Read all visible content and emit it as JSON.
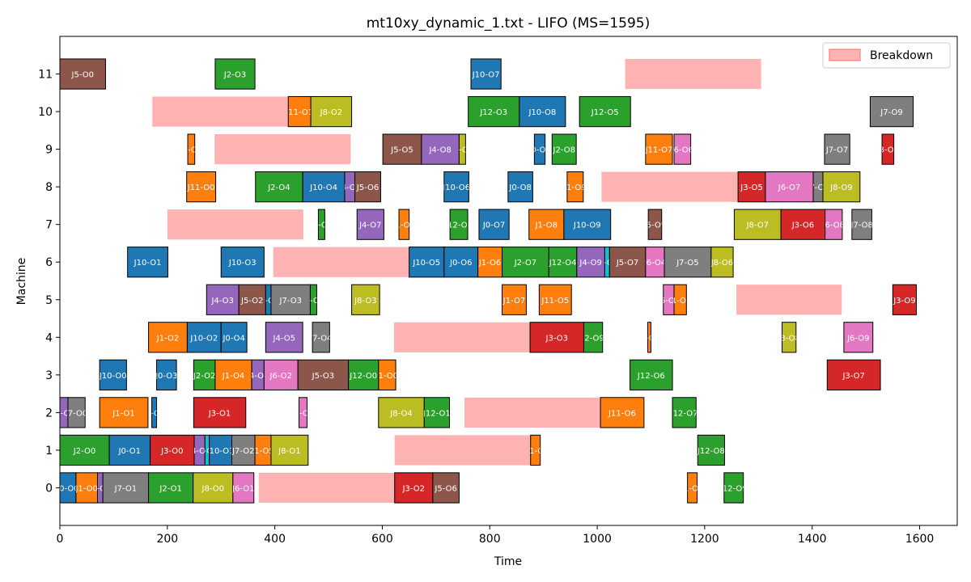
{
  "chart_data": {
    "type": "gantt",
    "title": "mt10xy_dynamic_1.txt - LIFO (MS=1595)",
    "xlabel": "Time",
    "ylabel": "Machine",
    "xlim": [
      0,
      1670
    ],
    "ylim": [
      -1,
      12
    ],
    "xticks": [
      0,
      200,
      400,
      600,
      800,
      1000,
      1200,
      1400,
      1600
    ],
    "yticks": [
      0,
      1,
      2,
      3,
      4,
      5,
      6,
      7,
      8,
      9,
      10,
      11
    ],
    "legend": {
      "position": "top-right",
      "entries": [
        {
          "label": "Breakdown",
          "color": "#ffb3b3"
        }
      ]
    },
    "job_colors": {
      "J0": "#1f77b4",
      "J1": "#ff7f0e",
      "J2": "#2ca02c",
      "J3": "#d62728",
      "J4": "#9467bd",
      "J5": "#8c564b",
      "J6": "#e377c2",
      "J7": "#7f7f7f",
      "J8": "#bcbd22",
      "J9": "#17becf",
      "J10": "#1f77b4",
      "J11": "#ff7f0e",
      "J12": "#2ca02c"
    },
    "breakdown_color": "#ffb3b3",
    "breakdowns": [
      {
        "machine": 11,
        "start": 1052,
        "end": 1305
      },
      {
        "machine": 10,
        "start": 172,
        "end": 425
      },
      {
        "machine": 9,
        "start": 288,
        "end": 541
      },
      {
        "machine": 8,
        "start": 1008,
        "end": 1261
      },
      {
        "machine": 7,
        "start": 200,
        "end": 453
      },
      {
        "machine": 6,
        "start": 397,
        "end": 650
      },
      {
        "machine": 5,
        "start": 1259,
        "end": 1455
      },
      {
        "machine": 4,
        "start": 622,
        "end": 875
      },
      {
        "machine": 2,
        "start": 753,
        "end": 1006
      },
      {
        "machine": 1,
        "start": 623,
        "end": 876
      },
      {
        "machine": 0,
        "start": 370,
        "end": 623
      }
    ],
    "operations": [
      {
        "machine": 11,
        "job": "J5",
        "label": "J5-O0",
        "start": 0,
        "end": 85
      },
      {
        "machine": 11,
        "job": "J2",
        "label": "J2-O3",
        "start": 289,
        "end": 363
      },
      {
        "machine": 11,
        "job": "J10",
        "label": "J10-O7",
        "start": 765,
        "end": 821
      },
      {
        "machine": 10,
        "job": "J11",
        "label": "J11-O1",
        "start": 425,
        "end": 467
      },
      {
        "machine": 10,
        "job": "J8",
        "label": "J8-O2",
        "start": 467,
        "end": 543
      },
      {
        "machine": 10,
        "job": "J12",
        "label": "J12-O3",
        "start": 760,
        "end": 855
      },
      {
        "machine": 10,
        "job": "J10",
        "label": "J10-O8",
        "start": 855,
        "end": 941
      },
      {
        "machine": 10,
        "job": "J12",
        "label": "J12-O5",
        "start": 967,
        "end": 1062
      },
      {
        "machine": 10,
        "job": "J7",
        "label": "J7-O9",
        "start": 1508,
        "end": 1588
      },
      {
        "machine": 9,
        "job": "J1",
        "label": "J1-O2",
        "start": 238,
        "end": 251
      },
      {
        "machine": 9,
        "job": "J5",
        "label": "J5-O5",
        "start": 601,
        "end": 673
      },
      {
        "machine": 9,
        "job": "J4",
        "label": "J4-O8",
        "start": 673,
        "end": 743
      },
      {
        "machine": 9,
        "job": "J8",
        "label": "J8-O3",
        "start": 743,
        "end": 755
      },
      {
        "machine": 9,
        "job": "J0",
        "label": "J0-O9",
        "start": 883,
        "end": 903
      },
      {
        "machine": 9,
        "job": "J2",
        "label": "J2-O8",
        "start": 916,
        "end": 961
      },
      {
        "machine": 9,
        "job": "J11",
        "label": "J11-O7",
        "start": 1090,
        "end": 1140
      },
      {
        "machine": 9,
        "job": "J6",
        "label": "J6-O6",
        "start": 1143,
        "end": 1174
      },
      {
        "machine": 9,
        "job": "J7",
        "label": "J7-O7",
        "start": 1423,
        "end": 1470
      },
      {
        "machine": 9,
        "job": "J3",
        "label": "J3-O8",
        "start": 1530,
        "end": 1552
      },
      {
        "machine": 8,
        "job": "J11",
        "label": "J11-O0",
        "start": 236,
        "end": 290
      },
      {
        "machine": 8,
        "job": "J2",
        "label": "J2-O4",
        "start": 364,
        "end": 452
      },
      {
        "machine": 8,
        "job": "J10",
        "label": "J10-O4",
        "start": 452,
        "end": 530
      },
      {
        "machine": 8,
        "job": "J4",
        "label": "J4-O6",
        "start": 530,
        "end": 549
      },
      {
        "machine": 8,
        "job": "J5",
        "label": "J5-O6",
        "start": 549,
        "end": 597
      },
      {
        "machine": 8,
        "job": "J10",
        "label": "J10-O6",
        "start": 715,
        "end": 761
      },
      {
        "machine": 8,
        "job": "J0",
        "label": "J0-O8",
        "start": 834,
        "end": 880
      },
      {
        "machine": 8,
        "job": "J1",
        "label": "J1-O9",
        "start": 944,
        "end": 974
      },
      {
        "machine": 8,
        "job": "J3",
        "label": "J3-O5",
        "start": 1262,
        "end": 1313
      },
      {
        "machine": 8,
        "job": "J6",
        "label": "J6-O7",
        "start": 1313,
        "end": 1402
      },
      {
        "machine": 8,
        "job": "J7",
        "label": "J7-O6",
        "start": 1402,
        "end": 1420
      },
      {
        "machine": 8,
        "job": "J8",
        "label": "J8-O9",
        "start": 1420,
        "end": 1489
      },
      {
        "machine": 7,
        "job": "J2",
        "label": "J2-O6",
        "start": 481,
        "end": 493
      },
      {
        "machine": 7,
        "job": "J4",
        "label": "J4-O7",
        "start": 553,
        "end": 603
      },
      {
        "machine": 7,
        "job": "J1",
        "label": "J1-O6",
        "start": 631,
        "end": 650
      },
      {
        "machine": 7,
        "job": "J12",
        "label": "J12-O4",
        "start": 726,
        "end": 759
      },
      {
        "machine": 7,
        "job": "J0",
        "label": "J0-O7",
        "start": 780,
        "end": 836
      },
      {
        "machine": 7,
        "job": "J1",
        "label": "J1-O8",
        "start": 873,
        "end": 938
      },
      {
        "machine": 7,
        "job": "J10",
        "label": "J10-O9",
        "start": 938,
        "end": 1025
      },
      {
        "machine": 7,
        "job": "J5",
        "label": "J5-O9",
        "start": 1095,
        "end": 1120
      },
      {
        "machine": 7,
        "job": "J8",
        "label": "J8-O7",
        "start": 1255,
        "end": 1342
      },
      {
        "machine": 7,
        "job": "J3",
        "label": "J3-O6",
        "start": 1342,
        "end": 1424
      },
      {
        "machine": 7,
        "job": "J6",
        "label": "J6-O8",
        "start": 1424,
        "end": 1456
      },
      {
        "machine": 7,
        "job": "J7",
        "label": "J7-O8",
        "start": 1474,
        "end": 1511
      },
      {
        "machine": 6,
        "job": "J10",
        "label": "J10-O1",
        "start": 126,
        "end": 201
      },
      {
        "machine": 6,
        "job": "J10",
        "label": "J10-O3",
        "start": 300,
        "end": 380
      },
      {
        "machine": 6,
        "job": "J10",
        "label": "J10-O5",
        "start": 650,
        "end": 715
      },
      {
        "machine": 6,
        "job": "J0",
        "label": "J0-O6",
        "start": 715,
        "end": 778
      },
      {
        "machine": 6,
        "job": "J1",
        "label": "J1-O6",
        "start": 778,
        "end": 823
      },
      {
        "machine": 6,
        "job": "J2",
        "label": "J2-O7",
        "start": 823,
        "end": 910
      },
      {
        "machine": 6,
        "job": "J12",
        "label": "J12-O4",
        "start": 910,
        "end": 962
      },
      {
        "machine": 6,
        "job": "J4",
        "label": "J4-O9",
        "start": 962,
        "end": 1014
      },
      {
        "machine": 6,
        "job": "J9",
        "label": "J9-O4",
        "start": 1014,
        "end": 1023
      },
      {
        "machine": 6,
        "job": "J5",
        "label": "J5-O7",
        "start": 1023,
        "end": 1090
      },
      {
        "machine": 6,
        "job": "J6",
        "label": "J6-O4",
        "start": 1090,
        "end": 1125
      },
      {
        "machine": 6,
        "job": "J7",
        "label": "J7-O5",
        "start": 1125,
        "end": 1212
      },
      {
        "machine": 6,
        "job": "J8",
        "label": "J8-O6",
        "start": 1212,
        "end": 1253
      },
      {
        "machine": 5,
        "job": "J4",
        "label": "J4-O3",
        "start": 273,
        "end": 333
      },
      {
        "machine": 5,
        "job": "J5",
        "label": "J5-O2",
        "start": 333,
        "end": 383
      },
      {
        "machine": 5,
        "job": "J0",
        "label": "J0-O5",
        "start": 383,
        "end": 393
      },
      {
        "machine": 5,
        "job": "J7",
        "label": "J7-O3",
        "start": 393,
        "end": 466
      },
      {
        "machine": 5,
        "job": "J2",
        "label": "J2-O5",
        "start": 466,
        "end": 478
      },
      {
        "machine": 5,
        "job": "J8",
        "label": "J8-O3",
        "start": 543,
        "end": 595
      },
      {
        "machine": 5,
        "job": "J1",
        "label": "J1-O7",
        "start": 823,
        "end": 868
      },
      {
        "machine": 5,
        "job": "J11",
        "label": "J11-O5",
        "start": 892,
        "end": 952
      },
      {
        "machine": 5,
        "job": "J6",
        "label": "J6-O5",
        "start": 1123,
        "end": 1143
      },
      {
        "machine": 5,
        "job": "J1",
        "label": "J1-O5",
        "start": 1143,
        "end": 1166
      },
      {
        "machine": 5,
        "job": "J3",
        "label": "J3-O9",
        "start": 1550,
        "end": 1594
      },
      {
        "machine": 4,
        "job": "J1",
        "label": "J1-O2",
        "start": 165,
        "end": 237
      },
      {
        "machine": 4,
        "job": "J10",
        "label": "J10-O2",
        "start": 237,
        "end": 300
      },
      {
        "machine": 4,
        "job": "J0",
        "label": "J0-O4",
        "start": 300,
        "end": 348
      },
      {
        "machine": 4,
        "job": "J4",
        "label": "J4-O5",
        "start": 383,
        "end": 452
      },
      {
        "machine": 4,
        "job": "J7",
        "label": "J7-O4",
        "start": 470,
        "end": 502
      },
      {
        "machine": 4,
        "job": "J3",
        "label": "J3-O3",
        "start": 875,
        "end": 975
      },
      {
        "machine": 4,
        "job": "J2",
        "label": "J2-O9",
        "start": 975,
        "end": 1010
      },
      {
        "machine": 4,
        "job": "J1",
        "label": "J1-O3",
        "start": 1094,
        "end": 1100
      },
      {
        "machine": 4,
        "job": "J8",
        "label": "J8-O8",
        "start": 1344,
        "end": 1370
      },
      {
        "machine": 4,
        "job": "J6",
        "label": "J6-O9",
        "start": 1459,
        "end": 1513
      },
      {
        "machine": 3,
        "job": "J10",
        "label": "J10-O0",
        "start": 74,
        "end": 124
      },
      {
        "machine": 3,
        "job": "J0",
        "label": "J0-O3",
        "start": 180,
        "end": 217
      },
      {
        "machine": 3,
        "job": "J2",
        "label": "J2-O2",
        "start": 249,
        "end": 289
      },
      {
        "machine": 3,
        "job": "J1",
        "label": "J1-O4",
        "start": 289,
        "end": 357
      },
      {
        "machine": 3,
        "job": "J4",
        "label": "J4-O4",
        "start": 357,
        "end": 380
      },
      {
        "machine": 3,
        "job": "J6",
        "label": "J6-O2",
        "start": 380,
        "end": 443
      },
      {
        "machine": 3,
        "job": "J5",
        "label": "J5-O3",
        "start": 443,
        "end": 537
      },
      {
        "machine": 3,
        "job": "J12",
        "label": "J12-O0",
        "start": 537,
        "end": 593
      },
      {
        "machine": 3,
        "job": "J1",
        "label": "J1-O0",
        "start": 593,
        "end": 625
      },
      {
        "machine": 3,
        "job": "J12",
        "label": "J12-O6",
        "start": 1061,
        "end": 1140
      },
      {
        "machine": 3,
        "job": "J3",
        "label": "J3-O7",
        "start": 1428,
        "end": 1527
      },
      {
        "machine": 2,
        "job": "J4",
        "label": "J4-O0",
        "start": 0,
        "end": 15
      },
      {
        "machine": 2,
        "job": "J7",
        "label": "J7-O0",
        "start": 15,
        "end": 47
      },
      {
        "machine": 2,
        "job": "J1",
        "label": "J1-O1",
        "start": 74,
        "end": 164
      },
      {
        "machine": 2,
        "job": "J0",
        "label": "J0-O2",
        "start": 171,
        "end": 180
      },
      {
        "machine": 2,
        "job": "J3",
        "label": "J3-O1",
        "start": 249,
        "end": 346
      },
      {
        "machine": 2,
        "job": "J6",
        "label": "J6-O1",
        "start": 445,
        "end": 460
      },
      {
        "machine": 2,
        "job": "J8",
        "label": "J8-O4",
        "start": 593,
        "end": 678
      },
      {
        "machine": 2,
        "job": "J12",
        "label": "J12-O1",
        "start": 678,
        "end": 725
      },
      {
        "machine": 2,
        "job": "J11",
        "label": "J11-O6",
        "start": 1006,
        "end": 1087
      },
      {
        "machine": 2,
        "job": "J12",
        "label": "J12-O7",
        "start": 1140,
        "end": 1184
      },
      {
        "machine": 1,
        "job": "J2",
        "label": "J2-O0",
        "start": 0,
        "end": 92
      },
      {
        "machine": 1,
        "job": "J0",
        "label": "J0-O1",
        "start": 92,
        "end": 168
      },
      {
        "machine": 1,
        "job": "J3",
        "label": "J3-O0",
        "start": 168,
        "end": 250
      },
      {
        "machine": 1,
        "job": "J4",
        "label": "J4-O1",
        "start": 250,
        "end": 270
      },
      {
        "machine": 1,
        "job": "J9",
        "label": "J9-O1",
        "start": 270,
        "end": 278
      },
      {
        "machine": 1,
        "job": "J10",
        "label": "J10-O1",
        "start": 278,
        "end": 320
      },
      {
        "machine": 1,
        "job": "J7",
        "label": "J7-O2",
        "start": 320,
        "end": 363
      },
      {
        "machine": 1,
        "job": "J1",
        "label": "J1-O5",
        "start": 363,
        "end": 393
      },
      {
        "machine": 1,
        "job": "J8",
        "label": "J8-O1",
        "start": 393,
        "end": 462
      },
      {
        "machine": 1,
        "job": "J11",
        "label": "J11-O2",
        "start": 876,
        "end": 894
      },
      {
        "machine": 1,
        "job": "J12",
        "label": "J12-O8",
        "start": 1187,
        "end": 1237
      },
      {
        "machine": 0,
        "job": "J0",
        "label": "J0-O0",
        "start": 0,
        "end": 30
      },
      {
        "machine": 0,
        "job": "J1",
        "label": "J1-O0",
        "start": 30,
        "end": 70
      },
      {
        "machine": 0,
        "job": "J4",
        "label": "J4-O0",
        "start": 70,
        "end": 80
      },
      {
        "machine": 0,
        "job": "J7",
        "label": "J7-O1",
        "start": 80,
        "end": 165
      },
      {
        "machine": 0,
        "job": "J2",
        "label": "J2-O1",
        "start": 165,
        "end": 248
      },
      {
        "machine": 0,
        "job": "J8",
        "label": "J8-O0",
        "start": 248,
        "end": 322
      },
      {
        "machine": 0,
        "job": "J6",
        "label": "J6-O1",
        "start": 322,
        "end": 361
      },
      {
        "machine": 0,
        "job": "J3",
        "label": "J3-O2",
        "start": 623,
        "end": 694
      },
      {
        "machine": 0,
        "job": "J5",
        "label": "J5-O6",
        "start": 694,
        "end": 743
      },
      {
        "machine": 0,
        "job": "J1",
        "label": "J1-O9",
        "start": 1168,
        "end": 1186
      },
      {
        "machine": 0,
        "job": "J12",
        "label": "J12-O9",
        "start": 1236,
        "end": 1272
      }
    ]
  }
}
